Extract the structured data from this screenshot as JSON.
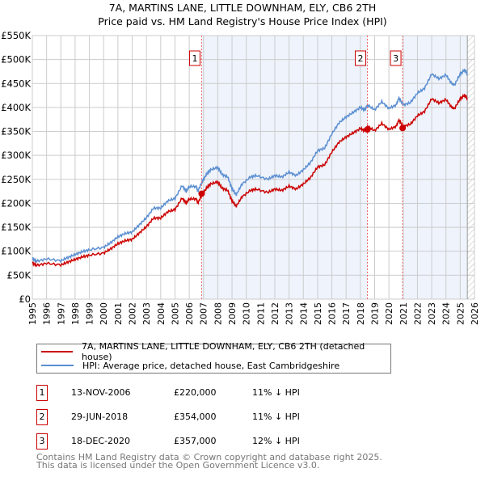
{
  "title": "7A, MARTINS LANE, LITTLE DOWNHAM, ELY, CB6 2TH",
  "subtitle": "Price paid vs. HM Land Registry's House Price Index (HPI)",
  "chart_data": {
    "type": "line",
    "title": "7A, MARTINS LANE, LITTLE DOWNHAM, ELY, CB6 2TH",
    "subtitle": "Price paid vs. HM Land Registry's House Price Index (HPI)",
    "xlim": [
      1995,
      2026
    ],
    "ylim": [
      0,
      550000
    ],
    "x_ticks": [
      "1995",
      "1996",
      "1997",
      "1998",
      "1999",
      "2000",
      "2001",
      "2002",
      "2003",
      "2004",
      "2005",
      "2006",
      "2007",
      "2008",
      "2009",
      "2010",
      "2011",
      "2012",
      "2013",
      "2014",
      "2015",
      "2016",
      "2017",
      "2018",
      "2019",
      "2020",
      "2021",
      "2022",
      "2023",
      "2024",
      "2025",
      "2026"
    ],
    "y_ticks": [
      "£0",
      "£50K",
      "£100K",
      "£150K",
      "£200K",
      "£250K",
      "£300K",
      "£350K",
      "£400K",
      "£450K",
      "£500K",
      "£550K"
    ],
    "grid": true,
    "colors": {
      "property": "#cc0000",
      "hpi": "#5b8fd1",
      "shade": "#eef3fc"
    },
    "series": [
      {
        "name": "HPI: Average price, detached house, East Cambridgeshire",
        "x": [
          1995,
          1995.3,
          1996,
          1997,
          1997.5,
          1998,
          1998.5,
          1999,
          2000,
          2000.5,
          2001,
          2001.5,
          2002,
          2002.5,
          2003,
          2003.5,
          2004,
          2004.5,
          2005,
          2005.5,
          2005.8,
          2006,
          2006.5,
          2006.6,
          2006.9,
          2007.2,
          2007.5,
          2008,
          2008.3,
          2008.7,
          2009,
          2009.3,
          2009.7,
          2010.3,
          2010.7,
          2011.5,
          2012,
          2012.5,
          2013,
          2013.5,
          2014,
          2014.5,
          2015,
          2015.5,
          2016,
          2016.5,
          2017,
          2017.5,
          2018,
          2018.3,
          2018.5,
          2019,
          2019.5,
          2020,
          2020.5,
          2020.7,
          2021,
          2021.5,
          2022,
          2022.5,
          2023,
          2023.5,
          2024,
          2024.4,
          2024.6,
          2025,
          2025.3,
          2025.5
        ],
        "y": [
          85000,
          79000,
          84000,
          80000,
          87000,
          93000,
          99000,
          103000,
          108000,
          118000,
          130000,
          137000,
          140000,
          155000,
          170000,
          190000,
          190000,
          205000,
          210000,
          237000,
          225000,
          235000,
          235000,
          225000,
          245000,
          260000,
          270000,
          275000,
          260000,
          255000,
          230000,
          218000,
          240000,
          255000,
          258000,
          250000,
          258000,
          255000,
          265000,
          258000,
          270000,
          285000,
          310000,
          315000,
          345000,
          368000,
          380000,
          390000,
          400000,
          395000,
          405000,
          395000,
          412000,
          398000,
          405000,
          420000,
          405000,
          410000,
          430000,
          440000,
          470000,
          460000,
          468000,
          450000,
          447000,
          470000,
          478000,
          470000
        ]
      },
      {
        "name": "7A, MARTINS LANE, LITTLE DOWNHAM, ELY, CB6 2TH (detached house)",
        "hpi_ratio": 0.89
      }
    ],
    "sales": [
      {
        "label": "1",
        "date": "13-NOV-2006",
        "x": 2006.87,
        "price": "£220,000",
        "value": 220000,
        "delta": "11% ↓ HPI"
      },
      {
        "label": "2",
        "date": "29-JUN-2018",
        "x": 2018.49,
        "price": "£354,000",
        "value": 354000,
        "delta": "11% ↓ HPI"
      },
      {
        "label": "3",
        "date": "18-DEC-2020",
        "x": 2020.96,
        "price": "£357,000",
        "value": 357000,
        "delta": "12% ↓ HPI"
      }
    ],
    "legend_position": "bottom"
  },
  "legend": {
    "property": "7A, MARTINS LANE, LITTLE DOWNHAM, ELY, CB6 2TH (detached house)",
    "hpi": "HPI: Average price, detached house, East Cambridgeshire"
  },
  "footer": {
    "line1": "Contains HM Land Registry data © Crown copyright and database right 2025.",
    "line2": "This data is licensed under the Open Government Licence v3.0."
  }
}
